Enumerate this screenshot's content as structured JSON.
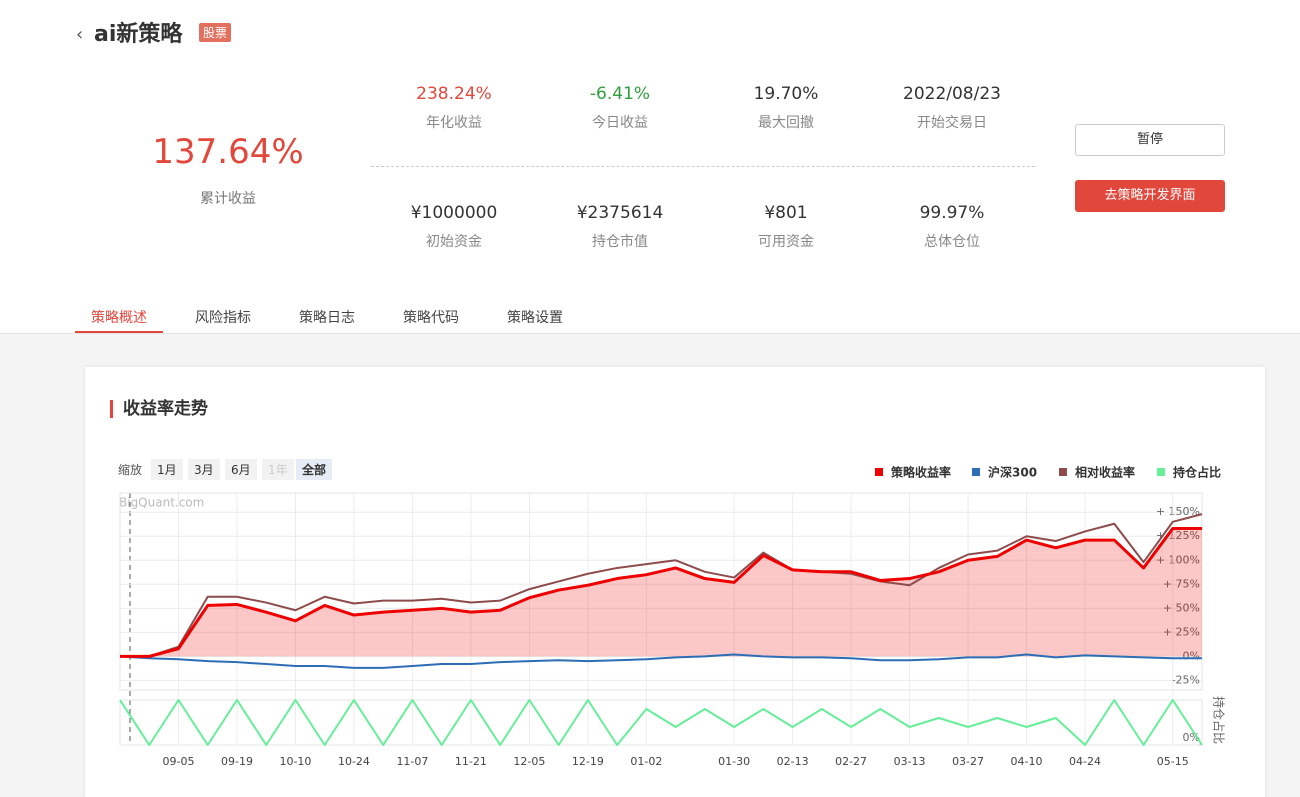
{
  "header": {
    "title": "ai新策略",
    "badge": "股票"
  },
  "summary": {
    "value": "137.64%",
    "label": "累计收益"
  },
  "stats": [
    {
      "value": "238.24%",
      "label": "年化收益",
      "tone": "up"
    },
    {
      "value": "-6.41%",
      "label": "今日收益",
      "tone": "down"
    },
    {
      "value": "19.70%",
      "label": "最大回撤",
      "tone": "plain"
    },
    {
      "value": "2022/08/23",
      "label": "开始交易日",
      "tone": "plain"
    },
    {
      "value": "¥1000000",
      "label": "初始资金",
      "tone": "plain"
    },
    {
      "value": "¥2375614",
      "label": "持仓市值",
      "tone": "plain"
    },
    {
      "value": "¥801",
      "label": "可用资金",
      "tone": "plain"
    },
    {
      "value": "99.97%",
      "label": "总体仓位",
      "tone": "plain"
    }
  ],
  "buttons": [
    "暂停",
    "去策略开发界面"
  ],
  "tabs": [
    "策略概述",
    "风险指标",
    "策略日志",
    "策略代码",
    "策略设置"
  ],
  "panel": {
    "title": "收益率走势",
    "zoom_label": "缩放",
    "ranges": [
      "1月",
      "3月",
      "6月",
      "1年",
      "全部"
    ],
    "watermark": "BigQuant.com"
  },
  "chart_data": {
    "type": "line",
    "categories": [
      null,
      null,
      "09-05",
      null,
      "09-19",
      null,
      "10-10",
      null,
      "10-24",
      null,
      "11-07",
      null,
      "11-21",
      null,
      "12-05",
      null,
      "12-19",
      null,
      "01-02",
      null,
      null,
      "01-30",
      null,
      "02-13",
      null,
      "02-27",
      null,
      "03-13",
      null,
      "03-27",
      null,
      "04-10",
      null,
      "04-24",
      null,
      null,
      "05-15",
      null
    ],
    "series": [
      {
        "name": "策略收益率",
        "color": "#ee0000",
        "values": [
          0,
          0,
          8,
          53,
          54,
          46,
          37,
          53,
          43,
          46,
          48,
          50,
          46,
          48,
          61,
          69,
          74,
          81,
          85,
          92,
          81,
          77,
          105,
          90,
          88,
          88,
          79,
          81,
          88,
          100,
          104,
          121,
          113,
          121,
          121,
          92,
          133,
          133
        ]
      },
      {
        "name": "沪深300",
        "color": "#2d6db5",
        "values": [
          0,
          -2,
          -3,
          -5,
          -6,
          -8,
          -10,
          -10,
          -12,
          -12,
          -10,
          -8,
          -8,
          -6,
          -5,
          -4,
          -5,
          -4,
          -3,
          -1,
          0,
          2,
          0,
          -1,
          -1,
          -2,
          -4,
          -4,
          -3,
          -1,
          -1,
          2,
          -1,
          1,
          0,
          -1,
          -2,
          -2
        ]
      },
      {
        "name": "相对收益率",
        "color": "#8e4b4b",
        "values": [
          0,
          0,
          10,
          62,
          62,
          56,
          48,
          62,
          55,
          58,
          58,
          60,
          56,
          58,
          70,
          78,
          86,
          92,
          96,
          100,
          88,
          82,
          108,
          90,
          88,
          86,
          78,
          74,
          92,
          106,
          110,
          125,
          120,
          130,
          138,
          98,
          140,
          148
        ]
      },
      {
        "name": "持仓占比",
        "color": "#66ee99",
        "axis": "y2",
        "values": [
          100,
          0,
          100,
          0,
          100,
          0,
          100,
          0,
          100,
          0,
          100,
          0,
          100,
          0,
          100,
          0,
          100,
          0,
          80,
          40,
          80,
          40,
          80,
          40,
          80,
          40,
          80,
          40,
          60,
          40,
          60,
          40,
          60,
          0,
          100,
          0,
          100,
          0
        ]
      }
    ],
    "ylim": [
      -35,
      170
    ],
    "yticks": [
      {
        "value": -25,
        "label": "-25%"
      },
      {
        "value": 0,
        "label": "0%"
      },
      {
        "value": 25,
        "label": "+ 25%"
      },
      {
        "value": 50,
        "label": "+ 50%"
      },
      {
        "value": 75,
        "label": "+ 75%"
      },
      {
        "value": 100,
        "label": "+ 100%"
      },
      {
        "value": 125,
        "label": "+ 125%"
      },
      {
        "value": 150,
        "label": "+ 150%"
      }
    ],
    "y2lim": [
      0,
      100
    ],
    "y2ticks": [
      {
        "value": 0,
        "label": "0%"
      }
    ],
    "y2label": "持仓占比",
    "grid": true
  }
}
